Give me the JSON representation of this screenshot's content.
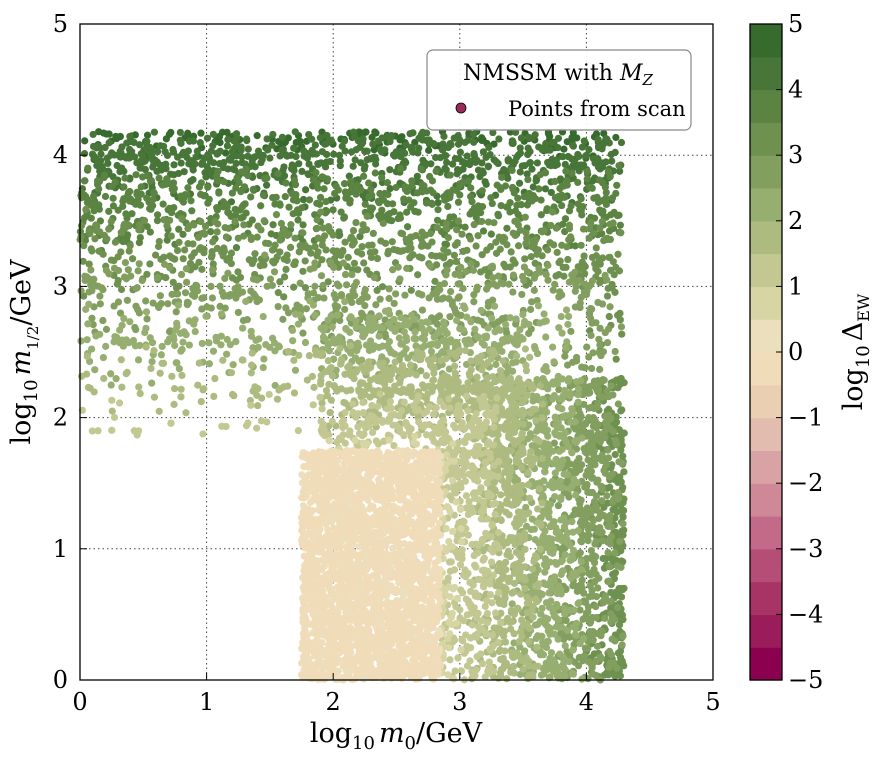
{
  "chart_data": {
    "type": "scatter",
    "xlabel": {
      "base": "log",
      "sub": "10",
      "var": "m",
      "var_sub": "0",
      "unit": "/GeV"
    },
    "ylabel": {
      "base": "log",
      "sub": "10",
      "var": "m",
      "var_sub": "1/2",
      "unit": "/GeV"
    },
    "xlim": [
      0,
      5
    ],
    "ylim": [
      0,
      5
    ],
    "x_ticks": [
      "0",
      "1",
      "2",
      "3",
      "4",
      "5"
    ],
    "y_ticks": [
      "0",
      "1",
      "2",
      "3",
      "4",
      "5"
    ],
    "grid": true,
    "legend": {
      "placement": "top-right",
      "title": {
        "text": "NMSSM with ",
        "var": "M",
        "var_sub": "Z"
      },
      "entries": [
        {
          "label": "Points from scan",
          "color": "#9a2a5a"
        }
      ]
    },
    "series": [
      {
        "name": "Points from scan",
        "description_regions": [
          {
            "x": [
              0.0,
              4.3
            ],
            "y": [
              1.8,
              4.2
            ],
            "colorvalue": "1 to 5"
          },
          {
            "x": [
              1.7,
              2.9
            ],
            "y": [
              0.0,
              1.9
            ],
            "colorvalue": "about 0"
          },
          {
            "x": [
              2.9,
              4.3
            ],
            "y": [
              0.0,
              4.2
            ],
            "colorvalue": "1 to 5"
          }
        ]
      }
    ],
    "colorbar": {
      "label": {
        "base": "log",
        "sub": "10",
        "var": "Δ",
        "var_sub": "EW"
      },
      "range": [
        -5,
        5
      ],
      "ticks": [
        "5",
        "4",
        "3",
        "2",
        "1",
        "0",
        "−1",
        "−2",
        "−3",
        "−4",
        "−5"
      ],
      "colors": [
        "#8c0050",
        "#9a1c5a",
        "#a83466",
        "#b54e76",
        "#c26a87",
        "#cf8898",
        "#d9a3a6",
        "#e3bcb0",
        "#ebcfb3",
        "#f0dcb8",
        "#ecdfbe",
        "#d8d5a5",
        "#c3c892",
        "#adbb80",
        "#97ae71",
        "#829f60",
        "#6e9150",
        "#5b8443",
        "#477638",
        "#376a2d"
      ]
    }
  }
}
